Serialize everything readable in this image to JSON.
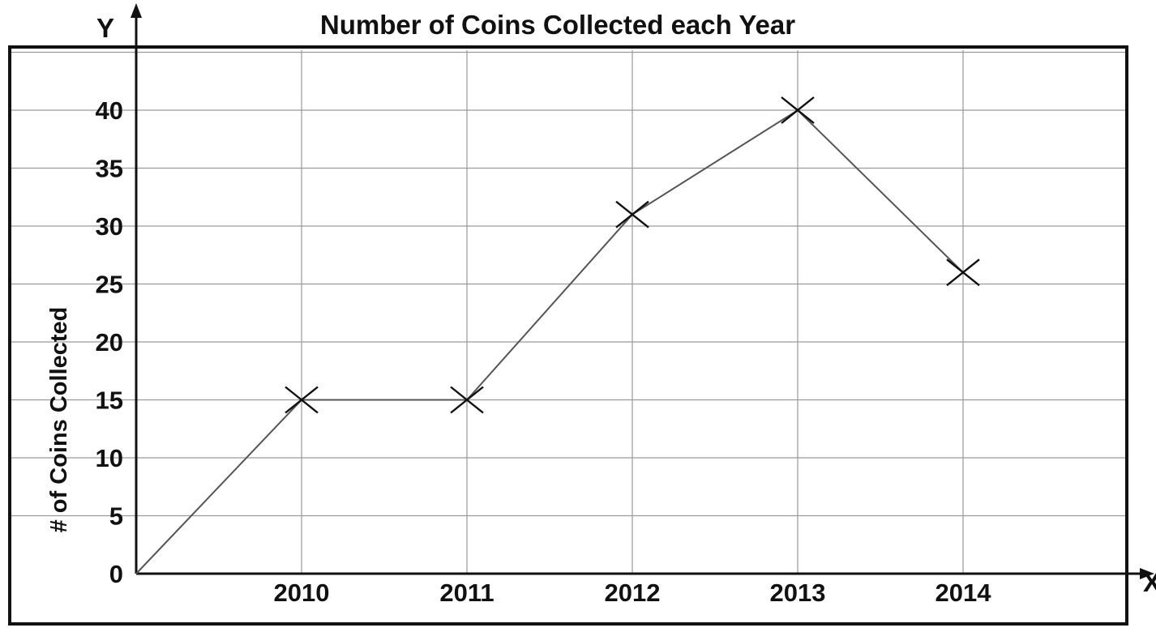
{
  "colors": {
    "ink": "#111111",
    "grid": "#9a9a9a",
    "line": "#555555",
    "background": "#ffffff"
  },
  "chart_data": {
    "type": "line",
    "title": "Number of Coins Collected each Year",
    "ylabel": "# of Coins Collected",
    "y_axis_letter": "Y",
    "x_axis_letter": "X",
    "categories": [
      "2010",
      "2011",
      "2012",
      "2013",
      "2014"
    ],
    "series": [
      {
        "marker": "x",
        "points": [
          {
            "x": "origin",
            "y": 0
          },
          {
            "x": "2010",
            "y": 15
          },
          {
            "x": "2011",
            "y": 15
          },
          {
            "x": "2012",
            "y": 31
          },
          {
            "x": "2013",
            "y": 40
          },
          {
            "x": "2014",
            "y": 26
          }
        ]
      }
    ],
    "yticks": [
      0,
      5,
      10,
      15,
      20,
      25,
      30,
      35,
      40
    ],
    "ylim": [
      0,
      45
    ],
    "grid": true
  }
}
